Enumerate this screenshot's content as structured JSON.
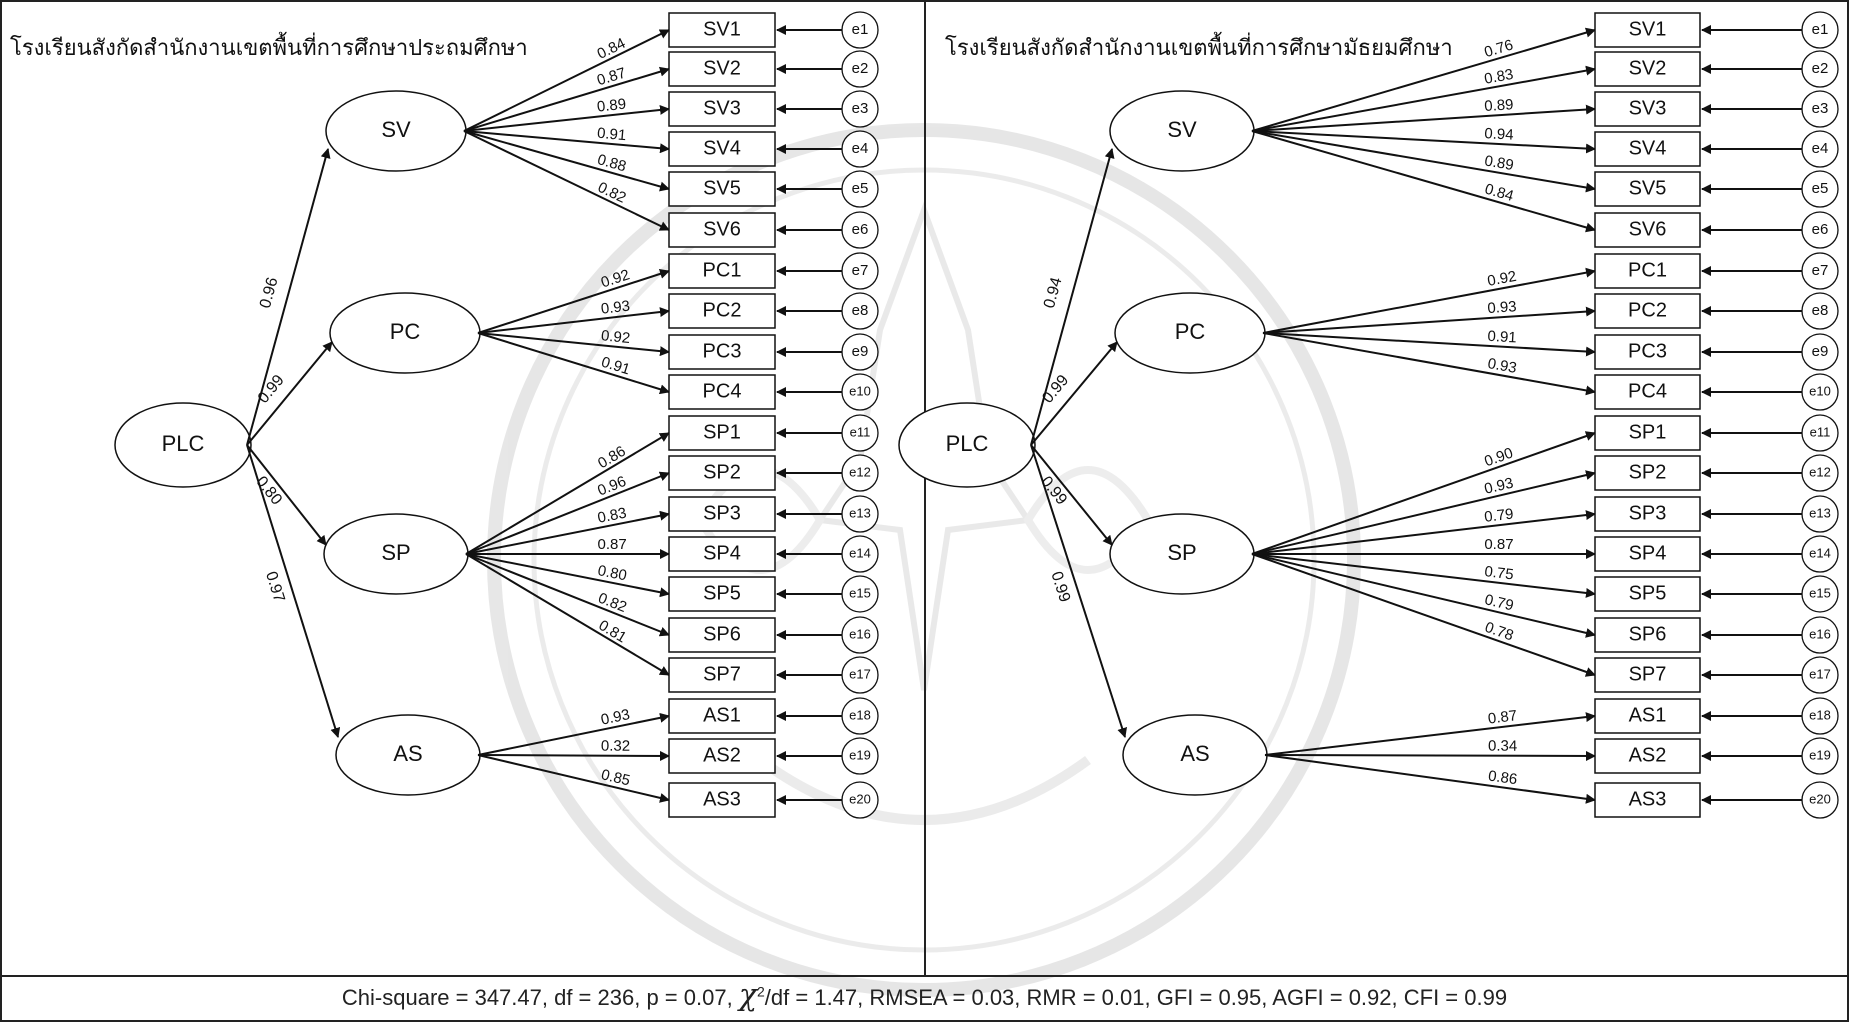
{
  "panels": [
    {
      "title": "โรงเรียนสังกัดสำนักงานเขตพื้นที่การศึกษาประถมศึกษา",
      "root": "PLC",
      "factors": [
        {
          "name": "SV",
          "loading": "0.96",
          "indicators": [
            {
              "name": "SV1",
              "loading": "0.84",
              "error": "e1"
            },
            {
              "name": "SV2",
              "loading": "0.87",
              "error": "e2"
            },
            {
              "name": "SV3",
              "loading": "0.89",
              "error": "e3"
            },
            {
              "name": "SV4",
              "loading": "0.91",
              "error": "e4"
            },
            {
              "name": "SV5",
              "loading": "0.88",
              "error": "e5"
            },
            {
              "name": "SV6",
              "loading": "0.82",
              "error": "e6"
            }
          ]
        },
        {
          "name": "PC",
          "loading": "0.99",
          "indicators": [
            {
              "name": "PC1",
              "loading": "0.92",
              "error": "e7"
            },
            {
              "name": "PC2",
              "loading": "0.93",
              "error": "e8"
            },
            {
              "name": "PC3",
              "loading": "0.92",
              "error": "e9"
            },
            {
              "name": "PC4",
              "loading": "0.91",
              "error": "e10"
            }
          ]
        },
        {
          "name": "SP",
          "loading": "0.80",
          "indicators": [
            {
              "name": "SP1",
              "loading": "0.86",
              "error": "e11"
            },
            {
              "name": "SP2",
              "loading": "0.96",
              "error": "e12"
            },
            {
              "name": "SP3",
              "loading": "0.83",
              "error": "e13"
            },
            {
              "name": "SP4",
              "loading": "0.87",
              "error": "e14"
            },
            {
              "name": "SP5",
              "loading": "0.80",
              "error": "e15"
            },
            {
              "name": "SP6",
              "loading": "0.82",
              "error": "e16"
            },
            {
              "name": "SP7",
              "loading": "0.81",
              "error": "e17"
            }
          ]
        },
        {
          "name": "AS",
          "loading": "0.97",
          "indicators": [
            {
              "name": "AS1",
              "loading": "0.93",
              "error": "e18"
            },
            {
              "name": "AS2",
              "loading": "0.32",
              "error": "e19"
            },
            {
              "name": "AS3",
              "loading": "0.85",
              "error": "e20"
            }
          ]
        }
      ]
    },
    {
      "title": "โรงเรียนสังกัดสำนักงานเขตพื้นที่การศึกษามัธยมศึกษา",
      "root": "PLC",
      "factors": [
        {
          "name": "SV",
          "loading": "0.94",
          "indicators": [
            {
              "name": "SV1",
              "loading": "0.76",
              "error": "e1"
            },
            {
              "name": "SV2",
              "loading": "0.83",
              "error": "e2"
            },
            {
              "name": "SV3",
              "loading": "0.89",
              "error": "e3"
            },
            {
              "name": "SV4",
              "loading": "0.94",
              "error": "e4"
            },
            {
              "name": "SV5",
              "loading": "0.89",
              "error": "e5"
            },
            {
              "name": "SV6",
              "loading": "0.84",
              "error": "e6"
            }
          ]
        },
        {
          "name": "PC",
          "loading": "0.99",
          "indicators": [
            {
              "name": "PC1",
              "loading": "0.92",
              "error": "e7"
            },
            {
              "name": "PC2",
              "loading": "0.93",
              "error": "e8"
            },
            {
              "name": "PC3",
              "loading": "0.91",
              "error": "e9"
            },
            {
              "name": "PC4",
              "loading": "0.93",
              "error": "e10"
            }
          ]
        },
        {
          "name": "SP",
          "loading": "0.99",
          "indicators": [
            {
              "name": "SP1",
              "loading": "0.90",
              "error": "e11"
            },
            {
              "name": "SP2",
              "loading": "0.93",
              "error": "e12"
            },
            {
              "name": "SP3",
              "loading": "0.79",
              "error": "e13"
            },
            {
              "name": "SP4",
              "loading": "0.87",
              "error": "e14"
            },
            {
              "name": "SP5",
              "loading": "0.75",
              "error": "e15"
            },
            {
              "name": "SP6",
              "loading": "0.79",
              "error": "e16"
            },
            {
              "name": "SP7",
              "loading": "0.78",
              "error": "e17"
            }
          ]
        },
        {
          "name": "AS",
          "loading": "0.99",
          "indicators": [
            {
              "name": "AS1",
              "loading": "0.87",
              "error": "e18"
            },
            {
              "name": "AS2",
              "loading": "0.34",
              "error": "e19"
            },
            {
              "name": "AS3",
              "loading": "0.86",
              "error": "e20"
            }
          ]
        }
      ]
    }
  ],
  "fit_stats": {
    "chi_square": "Chi-square = 347.47, df = 236, p = 0.07,",
    "chi_ratio_symbol": "χ",
    "chi_ratio_sup": "2",
    "chi_ratio_rest": "/df = 1.47, RMSEA = 0.03, RMR = 0.01, GFI = 0.95, AGFI = 0.92, CFI = 0.99"
  },
  "colors": {
    "line": "#111111",
    "watermark": "#cfcfcf"
  }
}
